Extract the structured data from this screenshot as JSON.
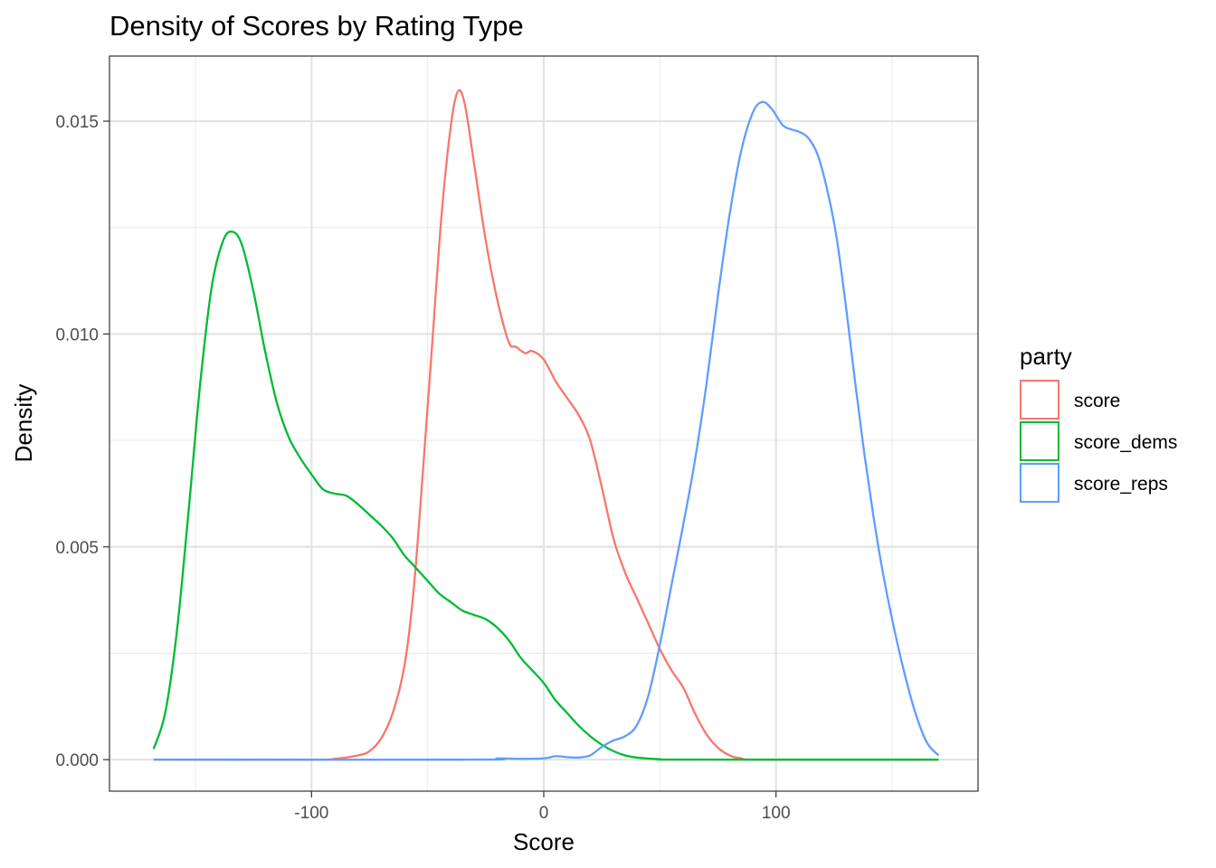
{
  "chart_data": {
    "type": "line",
    "title": "Density of Scores by Rating Type",
    "xlabel": "Score",
    "ylabel": "Density",
    "xlim": [
      -187,
      187
    ],
    "ylim": [
      -0.00074,
      0.01653
    ],
    "x_ticks": [
      -100,
      0,
      100
    ],
    "x_tick_labels": [
      "-100",
      "0",
      "100"
    ],
    "x_minor_ticks": [
      -150,
      -50,
      50,
      150
    ],
    "y_ticks": [
      0,
      0.005,
      0.01,
      0.015
    ],
    "y_tick_labels": [
      "0.000",
      "0.005",
      "0.010",
      "0.015"
    ],
    "y_minor_ticks": [
      0.0025,
      0.0075,
      0.0125
    ],
    "grid": true,
    "legend": {
      "title": "party",
      "position": "right"
    },
    "series": [
      {
        "name": "score",
        "color": "#F8766D",
        "points": [
          [
            -168,
            0
          ],
          [
            -100,
            0
          ],
          [
            -90,
            2e-05
          ],
          [
            -80,
            0.0001
          ],
          [
            -75,
            0.0002
          ],
          [
            -70,
            0.0005
          ],
          [
            -65,
            0.0011
          ],
          [
            -60,
            0.0022
          ],
          [
            -56,
            0.004
          ],
          [
            -52,
            0.0068
          ],
          [
            -48,
            0.0098
          ],
          [
            -44,
            0.0128
          ],
          [
            -40,
            0.0149
          ],
          [
            -37,
            0.0157
          ],
          [
            -34,
            0.0154
          ],
          [
            -30,
            0.014
          ],
          [
            -25,
            0.0122
          ],
          [
            -20,
            0.0108
          ],
          [
            -15,
            0.0098
          ],
          [
            -12,
            0.0097
          ],
          [
            -8,
            0.00955
          ],
          [
            -5,
            0.0096
          ],
          [
            0,
            0.0094
          ],
          [
            5,
            0.0089
          ],
          [
            10,
            0.0085
          ],
          [
            15,
            0.0081
          ],
          [
            20,
            0.0075
          ],
          [
            25,
            0.0064
          ],
          [
            30,
            0.0052
          ],
          [
            35,
            0.0044
          ],
          [
            40,
            0.0038
          ],
          [
            45,
            0.0032
          ],
          [
            50,
            0.0026
          ],
          [
            55,
            0.0021
          ],
          [
            60,
            0.0017
          ],
          [
            65,
            0.0011
          ],
          [
            70,
            0.0006
          ],
          [
            75,
            0.00028
          ],
          [
            80,
            0.0001
          ],
          [
            85,
            3e-05
          ],
          [
            95,
            0
          ],
          [
            170,
            0
          ]
        ]
      },
      {
        "name": "score_dems",
        "color": "#00BA38",
        "points": [
          [
            -168,
            0.00025
          ],
          [
            -163,
            0.0011
          ],
          [
            -158,
            0.003
          ],
          [
            -153,
            0.0058
          ],
          [
            -148,
            0.0088
          ],
          [
            -143,
            0.0111
          ],
          [
            -138,
            0.0122
          ],
          [
            -134,
            0.0124
          ],
          [
            -130,
            0.0121
          ],
          [
            -125,
            0.011
          ],
          [
            -120,
            0.0096
          ],
          [
            -115,
            0.0084
          ],
          [
            -110,
            0.0076
          ],
          [
            -105,
            0.0071
          ],
          [
            -100,
            0.0067
          ],
          [
            -95,
            0.00635
          ],
          [
            -90,
            0.00625
          ],
          [
            -85,
            0.0062
          ],
          [
            -80,
            0.006
          ],
          [
            -75,
            0.00575
          ],
          [
            -70,
            0.0055
          ],
          [
            -65,
            0.0052
          ],
          [
            -60,
            0.0048
          ],
          [
            -55,
            0.0045
          ],
          [
            -50,
            0.0042
          ],
          [
            -45,
            0.0039
          ],
          [
            -40,
            0.0037
          ],
          [
            -35,
            0.0035
          ],
          [
            -30,
            0.0034
          ],
          [
            -25,
            0.0033
          ],
          [
            -20,
            0.0031
          ],
          [
            -15,
            0.0028
          ],
          [
            -10,
            0.0024
          ],
          [
            -5,
            0.0021
          ],
          [
            0,
            0.0018
          ],
          [
            5,
            0.0014
          ],
          [
            10,
            0.0011
          ],
          [
            15,
            0.0008
          ],
          [
            20,
            0.00055
          ],
          [
            25,
            0.00035
          ],
          [
            30,
            0.0002
          ],
          [
            35,
            0.0001
          ],
          [
            40,
            5e-05
          ],
          [
            50,
            1e-05
          ],
          [
            60,
            0
          ],
          [
            170,
            0
          ]
        ]
      },
      {
        "name": "score_reps",
        "color": "#619CFF",
        "points": [
          [
            -168,
            0
          ],
          [
            -30,
            0
          ],
          [
            -20,
            3e-05
          ],
          [
            -10,
            2e-05
          ],
          [
            0,
            3e-05
          ],
          [
            5,
            8e-05
          ],
          [
            10,
            6e-05
          ],
          [
            15,
            5e-05
          ],
          [
            20,
            0.0001
          ],
          [
            25,
            0.0003
          ],
          [
            30,
            0.00045
          ],
          [
            35,
            0.00055
          ],
          [
            40,
            0.0008
          ],
          [
            45,
            0.0015
          ],
          [
            50,
            0.0027
          ],
          [
            55,
            0.0041
          ],
          [
            60,
            0.0055
          ],
          [
            65,
            0.007
          ],
          [
            70,
            0.0088
          ],
          [
            75,
            0.0109
          ],
          [
            80,
            0.0128
          ],
          [
            85,
            0.0143
          ],
          [
            90,
            0.0152
          ],
          [
            94,
            0.01545
          ],
          [
            98,
            0.0153
          ],
          [
            103,
            0.0149
          ],
          [
            107,
            0.0148
          ],
          [
            110,
            0.01475
          ],
          [
            114,
            0.0146
          ],
          [
            118,
            0.0142
          ],
          [
            122,
            0.0134
          ],
          [
            126,
            0.0123
          ],
          [
            130,
            0.0107
          ],
          [
            134,
            0.0089
          ],
          [
            138,
            0.0072
          ],
          [
            142,
            0.0057
          ],
          [
            146,
            0.0044
          ],
          [
            150,
            0.0033
          ],
          [
            155,
            0.0021
          ],
          [
            160,
            0.0011
          ],
          [
            165,
            0.0004
          ],
          [
            170,
            0.0001
          ]
        ]
      }
    ]
  }
}
